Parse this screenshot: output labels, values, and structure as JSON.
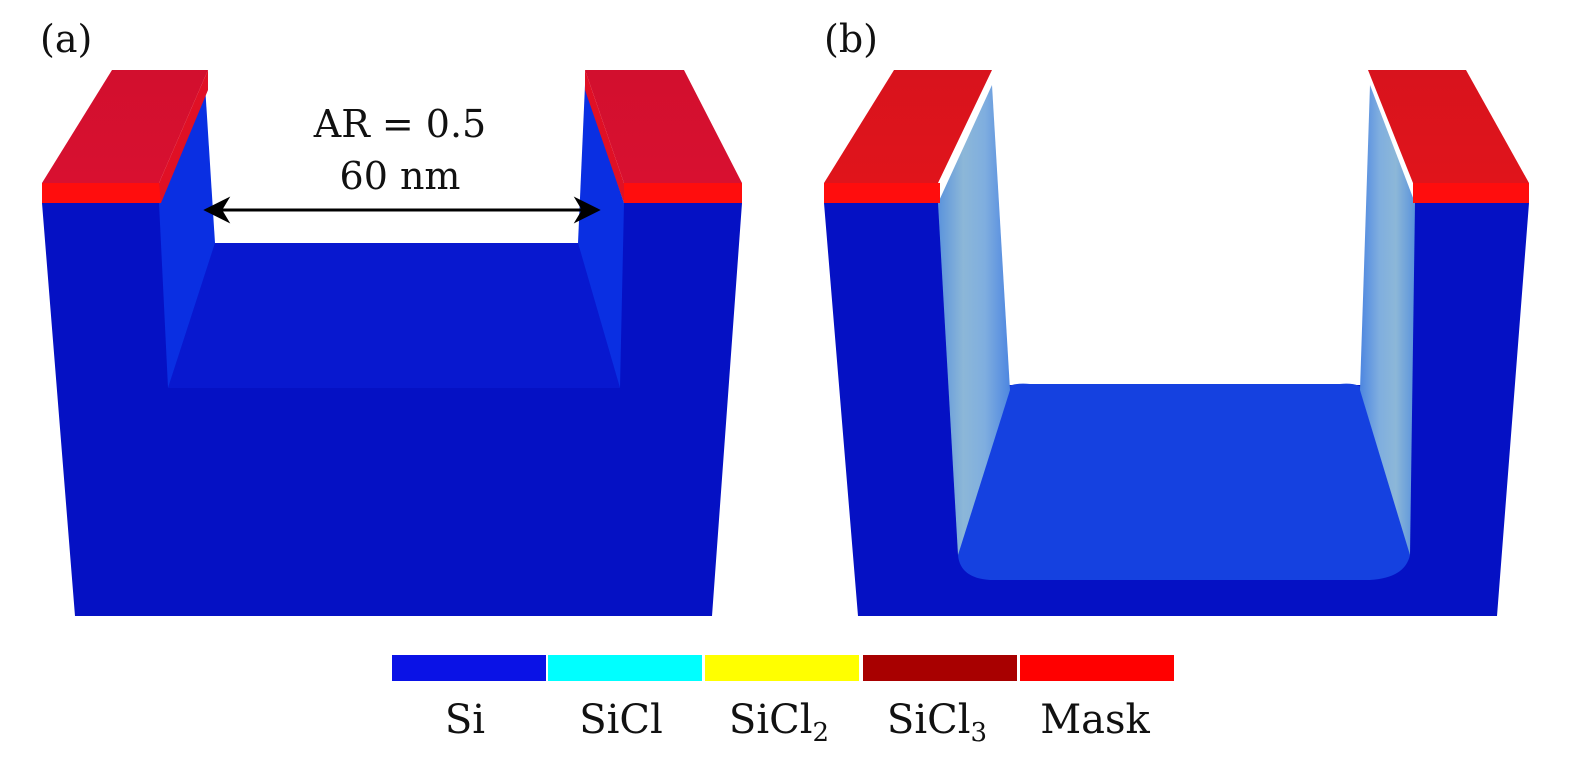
{
  "panels": [
    {
      "label": "(a)"
    },
    {
      "label": "(b)"
    }
  ],
  "annotation": {
    "line1": "AR = 0.5",
    "line2": "60 nm"
  },
  "colorbar": [
    {
      "name": "Si",
      "sub": "",
      "color": "#0a12e6"
    },
    {
      "name": "SiCl",
      "sub": "",
      "color": "#00ffff"
    },
    {
      "name": "SiCl",
      "sub": "2",
      "color": "#ffff00"
    },
    {
      "name": "SiCl",
      "sub": "3",
      "color": "#a80000"
    },
    {
      "name": "Mask",
      "sub": "",
      "color": "#ff0000"
    }
  ],
  "colors": {
    "silicon": "#0511c4",
    "silicon_light": "#0b2be0",
    "mask": "#ff1a1a",
    "mask_top": "#d8102f"
  }
}
